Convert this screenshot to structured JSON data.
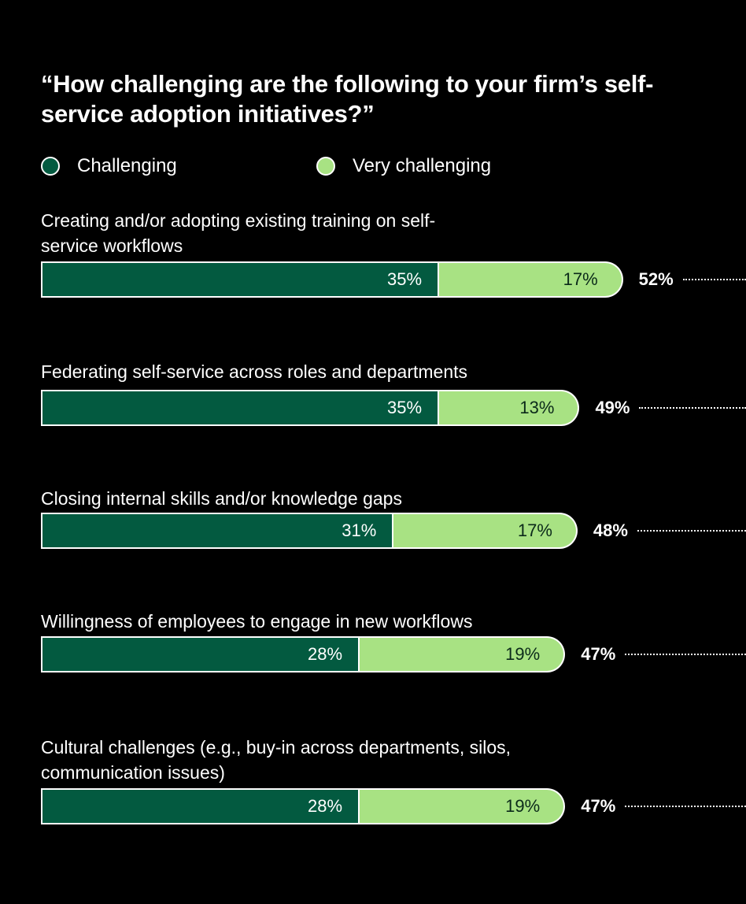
{
  "chart_data": {
    "type": "bar",
    "orientation": "horizontal",
    "stacked": true,
    "title": "“How challenging are the following to your firm’s self-service adoption initiatives?”",
    "legend": [
      {
        "name": "Challenging",
        "color": "#035a40"
      },
      {
        "name": "Very challenging",
        "color": "#a8e283"
      }
    ],
    "categories": [
      "Creating and/or adopting existing training on self-service workflows",
      "Federating self-service across roles and departments",
      "Closing internal skills and/or knowledge gaps",
      "Willingness of employees to engage in new workflows",
      "Cultural challenges (e.g., buy-in across departments, silos, communication issues)"
    ],
    "series": [
      {
        "name": "Challenging",
        "values": [
          35,
          35,
          31,
          28,
          28
        ],
        "labels": [
          "35%",
          "35%",
          "31%",
          "28%",
          "28%"
        ]
      },
      {
        "name": "Very challenging",
        "values": [
          17,
          13,
          17,
          19,
          19
        ],
        "labels": [
          "17%",
          "13%",
          "17%",
          "19%",
          "19%"
        ]
      }
    ],
    "totals": [
      "52%",
      "49%",
      "48%",
      "47%",
      "47%"
    ]
  }
}
